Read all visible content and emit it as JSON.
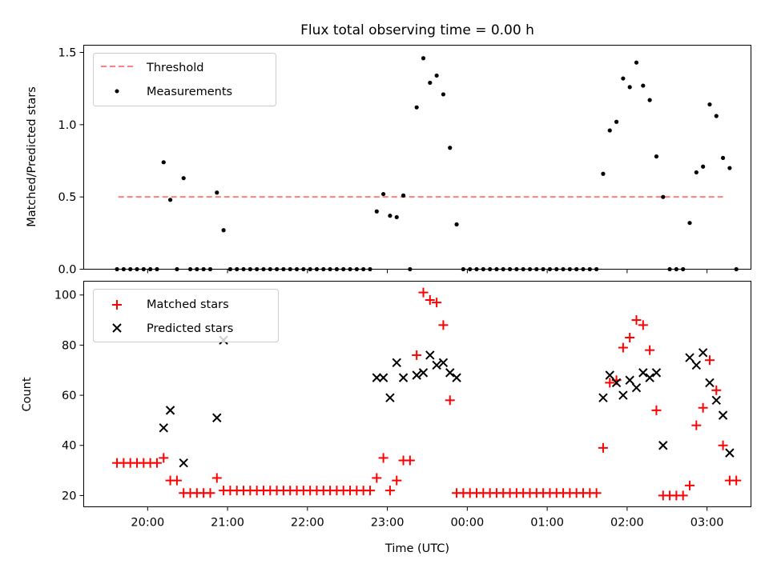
{
  "title": "Flux total observing time = 0.00 h",
  "x_axis": {
    "label": "Time (UTC)",
    "tick_labels": [
      "20:00",
      "21:00",
      "22:00",
      "23:00",
      "00:00",
      "01:00",
      "02:00",
      "03:00"
    ],
    "tick_hours": [
      20,
      21,
      22,
      23,
      24,
      25,
      26,
      27
    ],
    "xlim_hours": [
      19.2,
      27.55
    ]
  },
  "chart_data": [
    {
      "type": "scatter",
      "panel": "top",
      "ylabel": "Matched/Predicted stars",
      "ylim": [
        0,
        1.55
      ],
      "yticks": [
        0.0,
        0.5,
        1.0,
        1.5
      ],
      "ytick_labels": [
        "0.0",
        "0.5",
        "1.0",
        "1.5"
      ],
      "legend": {
        "position": "upper-left",
        "entries": [
          "Threshold",
          "Measurements"
        ]
      },
      "threshold": {
        "name": "Threshold",
        "y": 0.5,
        "x_range": [
          "19:38",
          "03:12"
        ],
        "color": "#ff7f7f"
      },
      "measurements": {
        "name": "Measurements",
        "color": "#000000",
        "points": [
          [
            "19:37",
            0
          ],
          [
            "19:42",
            0
          ],
          [
            "19:47",
            0
          ],
          [
            "19:52",
            0
          ],
          [
            "19:57",
            0
          ],
          [
            "20:02",
            0
          ],
          [
            "20:07",
            0
          ],
          [
            "20:12",
            0.74
          ],
          [
            "20:17",
            0.48
          ],
          [
            "20:22",
            0
          ],
          [
            "20:27",
            0.63
          ],
          [
            "20:32",
            0
          ],
          [
            "20:37",
            0
          ],
          [
            "20:42",
            0
          ],
          [
            "20:47",
            0
          ],
          [
            "20:52",
            0.53
          ],
          [
            "20:57",
            0.27
          ],
          [
            "21:02",
            0
          ],
          [
            "21:07",
            0
          ],
          [
            "21:12",
            0
          ],
          [
            "21:17",
            0
          ],
          [
            "21:22",
            0
          ],
          [
            "21:27",
            0
          ],
          [
            "21:32",
            0
          ],
          [
            "21:37",
            0
          ],
          [
            "21:42",
            0
          ],
          [
            "21:47",
            0
          ],
          [
            "21:52",
            0
          ],
          [
            "21:57",
            0
          ],
          [
            "22:02",
            0
          ],
          [
            "22:07",
            0
          ],
          [
            "22:12",
            0
          ],
          [
            "22:17",
            0
          ],
          [
            "22:22",
            0
          ],
          [
            "22:27",
            0
          ],
          [
            "22:32",
            0
          ],
          [
            "22:37",
            0
          ],
          [
            "22:42",
            0
          ],
          [
            "22:47",
            0
          ],
          [
            "22:52",
            0.4
          ],
          [
            "22:57",
            0.52
          ],
          [
            "23:02",
            0.37
          ],
          [
            "23:07",
            0.36
          ],
          [
            "23:12",
            0.51
          ],
          [
            "23:17",
            0
          ],
          [
            "23:22",
            1.12
          ],
          [
            "23:27",
            1.46
          ],
          [
            "23:32",
            1.29
          ],
          [
            "23:37",
            1.34
          ],
          [
            "23:42",
            1.21
          ],
          [
            "23:47",
            0.84
          ],
          [
            "23:52",
            0.31
          ],
          [
            "23:57",
            0
          ],
          [
            "00:02",
            0
          ],
          [
            "00:07",
            0
          ],
          [
            "00:12",
            0
          ],
          [
            "00:17",
            0
          ],
          [
            "00:22",
            0
          ],
          [
            "00:27",
            0
          ],
          [
            "00:32",
            0
          ],
          [
            "00:37",
            0
          ],
          [
            "00:42",
            0
          ],
          [
            "00:47",
            0
          ],
          [
            "00:52",
            0
          ],
          [
            "00:57",
            0
          ],
          [
            "01:02",
            0
          ],
          [
            "01:07",
            0
          ],
          [
            "01:12",
            0
          ],
          [
            "01:17",
            0
          ],
          [
            "01:22",
            0
          ],
          [
            "01:27",
            0
          ],
          [
            "01:32",
            0
          ],
          [
            "01:37",
            0
          ],
          [
            "01:42",
            0.66
          ],
          [
            "01:47",
            0.96
          ],
          [
            "01:52",
            1.02
          ],
          [
            "01:57",
            1.32
          ],
          [
            "02:02",
            1.26
          ],
          [
            "02:07",
            1.43
          ],
          [
            "02:12",
            1.27
          ],
          [
            "02:17",
            1.17
          ],
          [
            "02:22",
            0.78
          ],
          [
            "02:27",
            0.5
          ],
          [
            "02:32",
            0
          ],
          [
            "02:37",
            0
          ],
          [
            "02:42",
            0
          ],
          [
            "02:47",
            0.32
          ],
          [
            "02:52",
            0.67
          ],
          [
            "02:57",
            0.71
          ],
          [
            "03:02",
            1.14
          ],
          [
            "03:07",
            1.06
          ],
          [
            "03:12",
            0.77
          ],
          [
            "03:17",
            0.7
          ],
          [
            "03:22",
            0
          ]
        ]
      }
    },
    {
      "type": "scatter",
      "panel": "bottom",
      "ylabel": "Count",
      "ylim": [
        15.5,
        105.5
      ],
      "yticks": [
        20,
        40,
        60,
        80,
        100
      ],
      "ytick_labels": [
        "20",
        "40",
        "60",
        "80",
        "100"
      ],
      "legend": {
        "position": "upper-left",
        "entries": [
          "Matched stars",
          "Predicted stars"
        ]
      },
      "series": [
        {
          "name": "Matched stars",
          "marker": "plus",
          "color": "#ff0000",
          "points": [
            [
              "19:37",
              33
            ],
            [
              "19:42",
              33
            ],
            [
              "19:47",
              33
            ],
            [
              "19:52",
              33
            ],
            [
              "19:57",
              33
            ],
            [
              "20:02",
              33
            ],
            [
              "20:07",
              33
            ],
            [
              "20:12",
              35
            ],
            [
              "20:17",
              26
            ],
            [
              "20:22",
              26
            ],
            [
              "20:27",
              21
            ],
            [
              "20:32",
              21
            ],
            [
              "20:37",
              21
            ],
            [
              "20:42",
              21
            ],
            [
              "20:47",
              21
            ],
            [
              "20:52",
              27
            ],
            [
              "20:57",
              22
            ],
            [
              "21:02",
              22
            ],
            [
              "21:07",
              22
            ],
            [
              "21:12",
              22
            ],
            [
              "21:17",
              22
            ],
            [
              "21:22",
              22
            ],
            [
              "21:27",
              22
            ],
            [
              "21:32",
              22
            ],
            [
              "21:37",
              22
            ],
            [
              "21:42",
              22
            ],
            [
              "21:47",
              22
            ],
            [
              "21:52",
              22
            ],
            [
              "21:57",
              22
            ],
            [
              "22:02",
              22
            ],
            [
              "22:07",
              22
            ],
            [
              "22:12",
              22
            ],
            [
              "22:17",
              22
            ],
            [
              "22:22",
              22
            ],
            [
              "22:27",
              22
            ],
            [
              "22:32",
              22
            ],
            [
              "22:37",
              22
            ],
            [
              "22:42",
              22
            ],
            [
              "22:47",
              22
            ],
            [
              "22:52",
              27
            ],
            [
              "22:57",
              35
            ],
            [
              "23:02",
              22
            ],
            [
              "23:07",
              26
            ],
            [
              "23:12",
              34
            ],
            [
              "23:17",
              34
            ],
            [
              "23:22",
              76
            ],
            [
              "23:27",
              101
            ],
            [
              "23:32",
              98
            ],
            [
              "23:37",
              97
            ],
            [
              "23:42",
              88
            ],
            [
              "23:47",
              58
            ],
            [
              "23:52",
              21
            ],
            [
              "23:57",
              21
            ],
            [
              "00:02",
              21
            ],
            [
              "00:07",
              21
            ],
            [
              "00:12",
              21
            ],
            [
              "00:17",
              21
            ],
            [
              "00:22",
              21
            ],
            [
              "00:27",
              21
            ],
            [
              "00:32",
              21
            ],
            [
              "00:37",
              21
            ],
            [
              "00:42",
              21
            ],
            [
              "00:47",
              21
            ],
            [
              "00:52",
              21
            ],
            [
              "00:57",
              21
            ],
            [
              "01:02",
              21
            ],
            [
              "01:07",
              21
            ],
            [
              "01:12",
              21
            ],
            [
              "01:17",
              21
            ],
            [
              "01:22",
              21
            ],
            [
              "01:27",
              21
            ],
            [
              "01:32",
              21
            ],
            [
              "01:37",
              21
            ],
            [
              "01:42",
              39
            ],
            [
              "01:47",
              65
            ],
            [
              "01:52",
              66
            ],
            [
              "01:57",
              79
            ],
            [
              "02:02",
              83
            ],
            [
              "02:07",
              90
            ],
            [
              "02:12",
              88
            ],
            [
              "02:17",
              78
            ],
            [
              "02:22",
              54
            ],
            [
              "02:27",
              20
            ],
            [
              "02:32",
              20
            ],
            [
              "02:37",
              20
            ],
            [
              "02:42",
              20
            ],
            [
              "02:47",
              24
            ],
            [
              "02:52",
              48
            ],
            [
              "02:57",
              55
            ],
            [
              "03:02",
              74
            ],
            [
              "03:07",
              62
            ],
            [
              "03:12",
              40
            ],
            [
              "03:17",
              26
            ],
            [
              "03:22",
              26
            ]
          ]
        },
        {
          "name": "Predicted stars",
          "marker": "x",
          "color": "#000000",
          "points": [
            [
              "20:12",
              47
            ],
            [
              "20:17",
              54
            ],
            [
              "20:27",
              33
            ],
            [
              "20:57",
              82
            ],
            [
              "20:52",
              51
            ],
            [
              "22:52",
              67
            ],
            [
              "22:57",
              67
            ],
            [
              "23:02",
              59
            ],
            [
              "23:07",
              73
            ],
            [
              "23:12",
              67
            ],
            [
              "23:22",
              68
            ],
            [
              "23:27",
              69
            ],
            [
              "23:32",
              76
            ],
            [
              "23:37",
              72
            ],
            [
              "23:42",
              73
            ],
            [
              "23:47",
              69
            ],
            [
              "23:52",
              67
            ],
            [
              "01:42",
              59
            ],
            [
              "01:47",
              68
            ],
            [
              "01:52",
              65
            ],
            [
              "01:57",
              60
            ],
            [
              "02:02",
              66
            ],
            [
              "02:07",
              63
            ],
            [
              "02:12",
              69
            ],
            [
              "02:17",
              67
            ],
            [
              "02:22",
              69
            ],
            [
              "02:27",
              40
            ],
            [
              "02:47",
              75
            ],
            [
              "02:52",
              72
            ],
            [
              "02:57",
              77
            ],
            [
              "03:02",
              65
            ],
            [
              "03:07",
              58
            ],
            [
              "03:12",
              52
            ],
            [
              "03:17",
              37
            ]
          ]
        }
      ]
    }
  ]
}
